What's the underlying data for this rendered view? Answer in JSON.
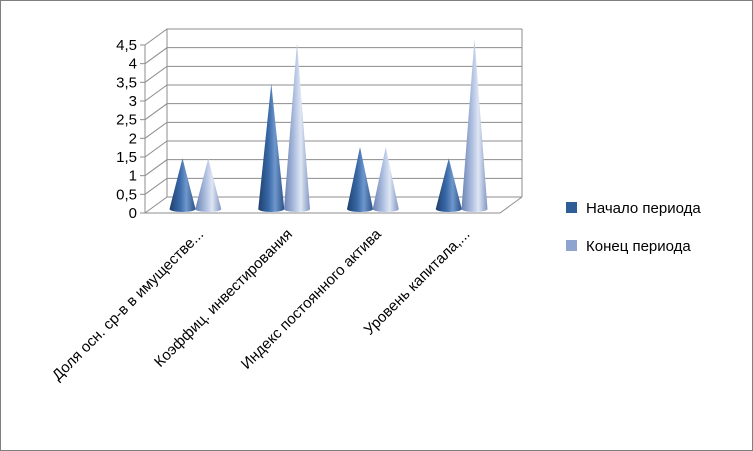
{
  "chart_data": {
    "type": "bar",
    "bar_shape": "cone-3d",
    "categories": [
      "Доля осн. ср-в в имуществе...",
      "Коэффиц. инвестирования",
      "Индекс постоянного актива",
      "Уровень капитала,..."
    ],
    "series": [
      {
        "name": "Начало периода",
        "values": [
          1.2,
          3.2,
          1.5,
          1.2
        ],
        "color": "#2f5d96"
      },
      {
        "name": "Конец периода",
        "values": [
          1.2,
          4.3,
          1.5,
          4.4
        ],
        "color": "#8ea4cf"
      }
    ],
    "yticks": [
      "0",
      "0,5",
      "1",
      "1,5",
      "2",
      "2,5",
      "3",
      "3,5",
      "4",
      "4,5"
    ],
    "ylim": [
      0,
      4.5
    ],
    "grid": true,
    "legend_position": "right"
  },
  "colors": {
    "grid": "#8c8c8c",
    "frame": "#7f7f7f"
  }
}
